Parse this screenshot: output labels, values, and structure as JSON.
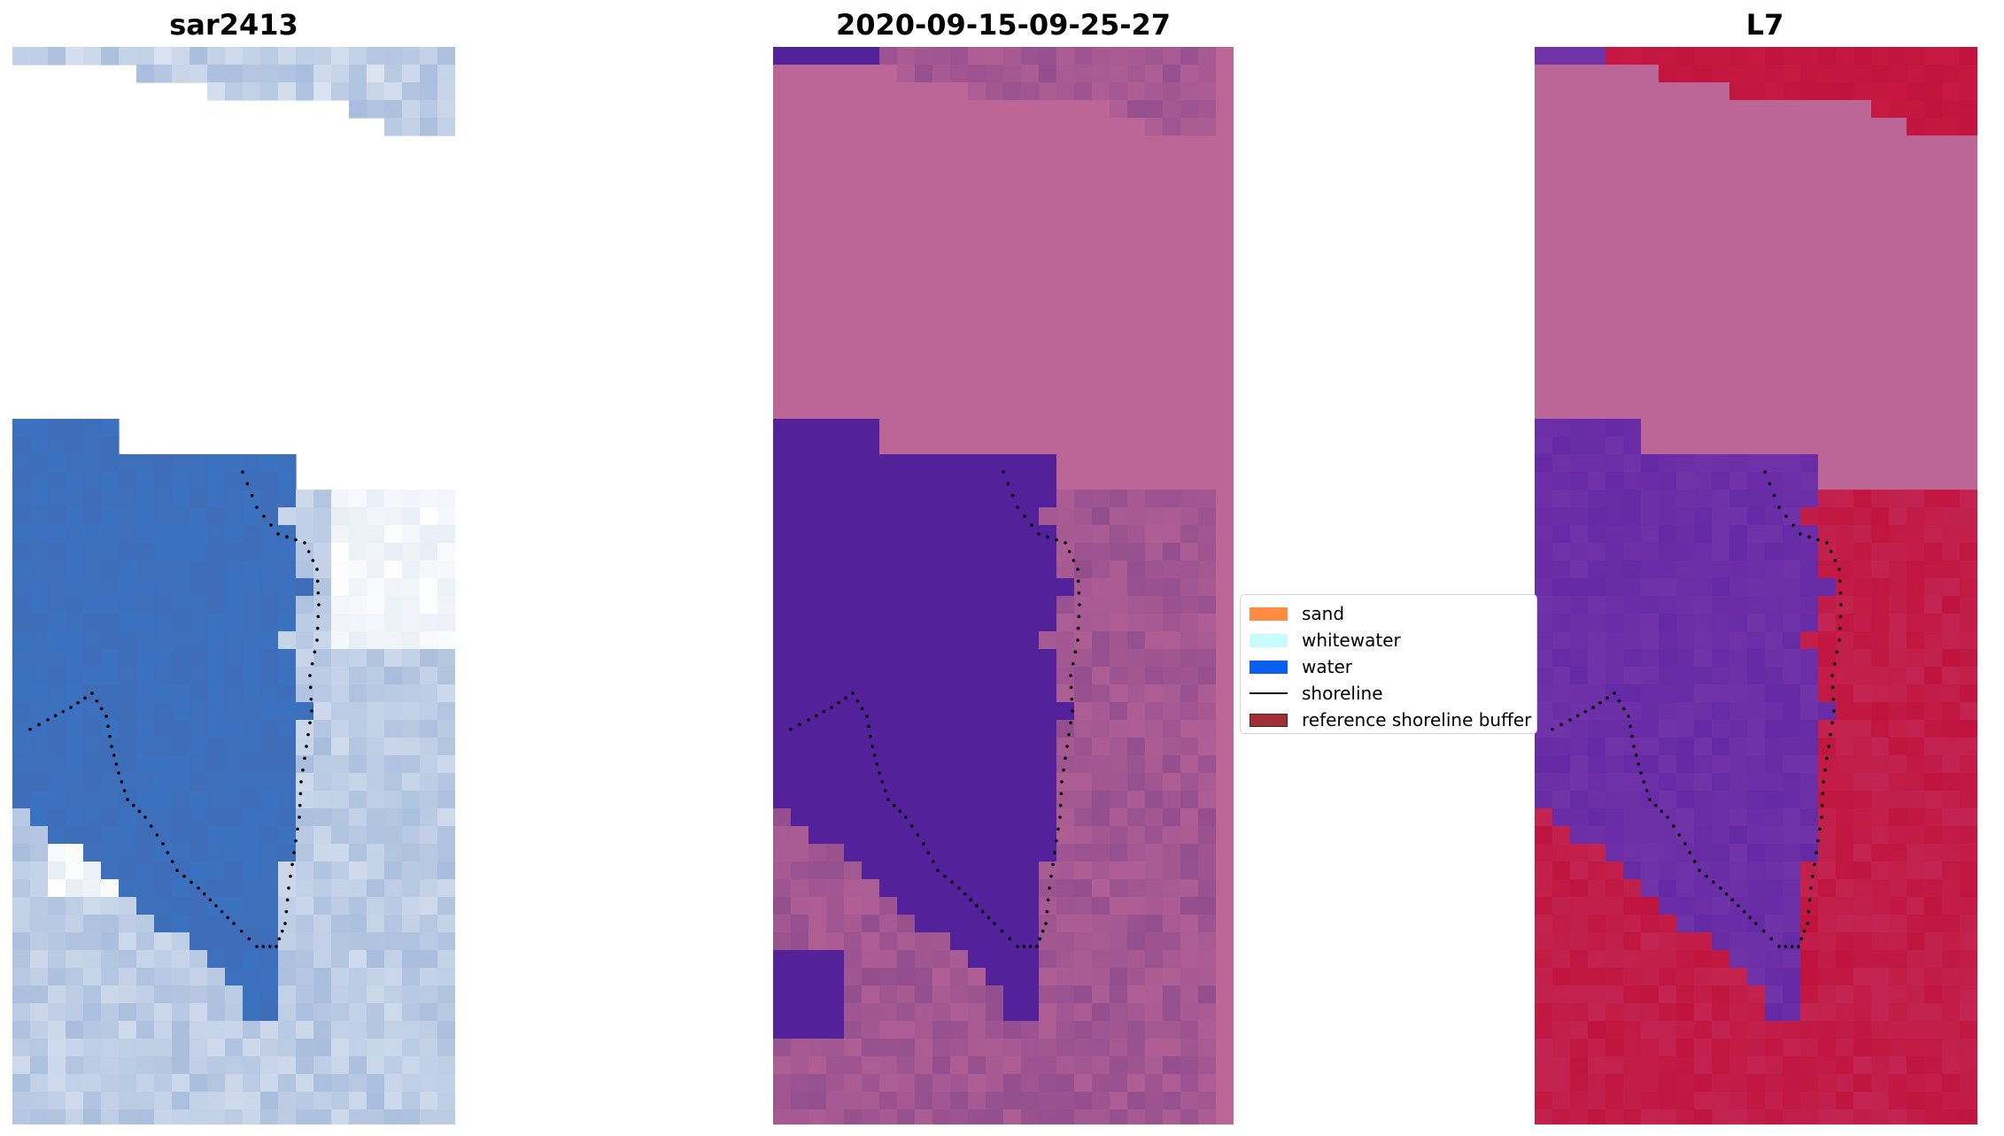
{
  "figure": {
    "panels": [
      {
        "id": "sar",
        "title": "sar2413"
      },
      {
        "id": "classified",
        "title": "2020-09-15-09-25-27"
      },
      {
        "id": "l7",
        "title": "L7"
      }
    ],
    "legend": [
      {
        "label": "sand",
        "color": "#ff8c40",
        "kind": "patch"
      },
      {
        "label": "whitewater",
        "color": "#c8fbfb",
        "kind": "patch"
      },
      {
        "label": "water",
        "color": "#0b5ef0",
        "kind": "patch"
      },
      {
        "label": "shoreline",
        "color": "#000000",
        "kind": "line"
      },
      {
        "label": "reference shoreline buffer",
        "color": "#a03038",
        "kind": "patch-outlined"
      }
    ],
    "colors": {
      "sar_water": "#3f6db8",
      "sar_land": "#a9bedd",
      "sar_foam": "#e9eef6",
      "classified_water": "#532199",
      "classified_land": "#934e8e",
      "nodata": "#bc6697",
      "l7_water": "#7133a8",
      "l7_land": "#c0143e",
      "shoreline": "#000000"
    }
  }
}
